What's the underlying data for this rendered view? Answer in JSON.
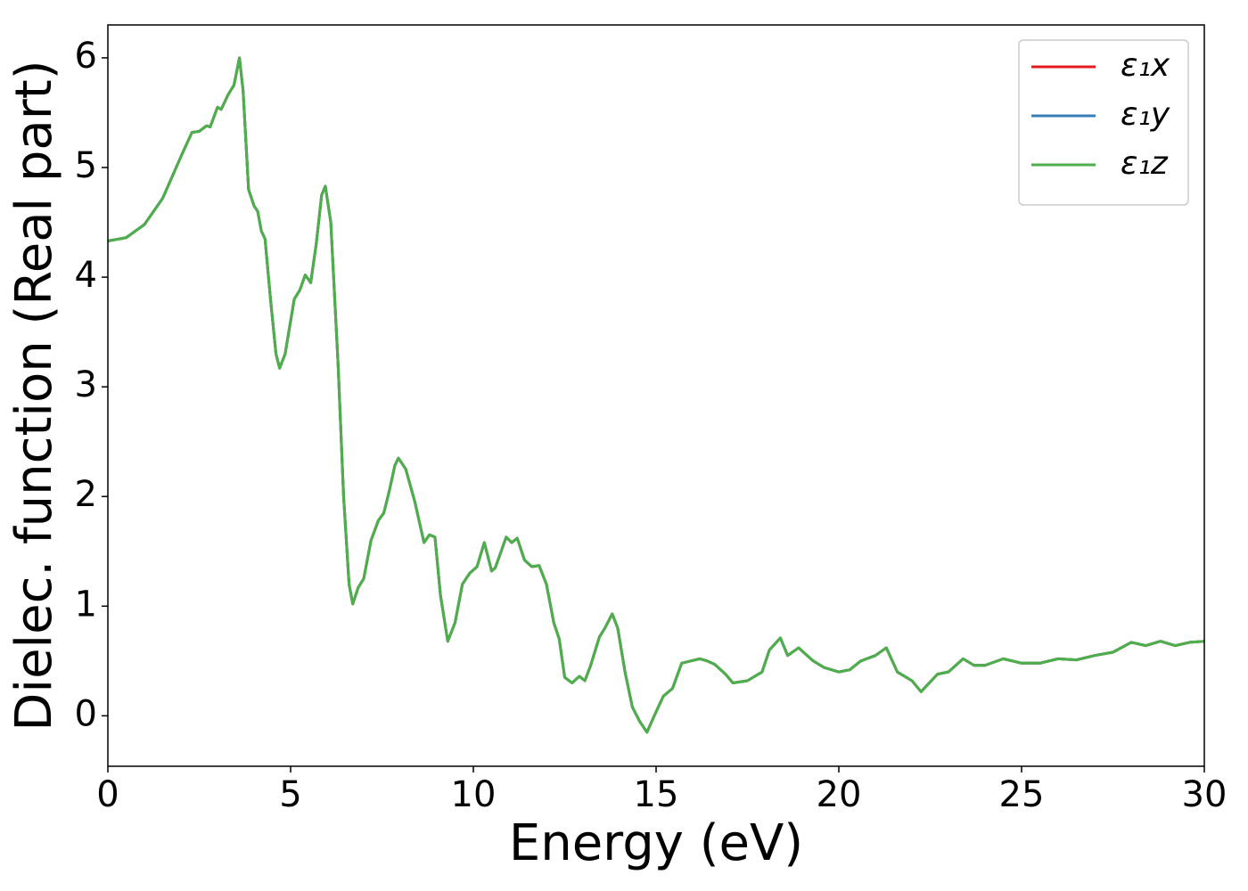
{
  "chart_data": {
    "type": "line",
    "xlabel": "Energy (eV)",
    "ylabel": "Dielec. function (Real part)",
    "x": [
      0,
      0.5,
      1,
      1.5,
      2,
      2.3,
      2.5,
      2.7,
      2.8,
      3.0,
      3.1,
      3.3,
      3.45,
      3.6,
      3.7,
      3.85,
      4.0,
      4.1,
      4.2,
      4.3,
      4.45,
      4.6,
      4.7,
      4.85,
      5.0,
      5.1,
      5.25,
      5.4,
      5.55,
      5.7,
      5.85,
      5.95,
      6.1,
      6.3,
      6.45,
      6.6,
      6.7,
      6.85,
      7.0,
      7.2,
      7.4,
      7.55,
      7.7,
      7.85,
      7.95,
      8.15,
      8.4,
      8.65,
      8.8,
      8.95,
      9.1,
      9.3,
      9.5,
      9.7,
      9.9,
      10.1,
      10.3,
      10.5,
      10.6,
      10.9,
      11.05,
      11.2,
      11.4,
      11.6,
      11.8,
      12.0,
      12.2,
      12.35,
      12.5,
      12.7,
      12.9,
      13.05,
      13.2,
      13.45,
      13.6,
      13.8,
      13.95,
      14.15,
      14.35,
      14.55,
      14.75,
      14.95,
      15.2,
      15.45,
      15.7,
      15.95,
      16.2,
      16.4,
      16.6,
      16.9,
      17.1,
      17.5,
      17.9,
      18.1,
      18.4,
      18.6,
      18.9,
      19.3,
      19.6,
      20.0,
      20.3,
      20.6,
      21.0,
      21.3,
      21.6,
      22.0,
      22.25,
      22.7,
      23.0,
      23.4,
      23.7,
      24.0,
      24.5,
      25.0,
      25.5,
      26.0,
      26.5,
      27.0,
      27.5,
      28.0,
      28.4,
      28.8,
      29.2,
      29.6,
      30.0
    ],
    "series": [
      {
        "name": "ε₁x",
        "color": "#e41a1c",
        "values": [
          4.33,
          4.36,
          4.48,
          4.72,
          5.1,
          5.32,
          5.33,
          5.38,
          5.37,
          5.55,
          5.53,
          5.67,
          5.75,
          6.0,
          5.7,
          4.8,
          4.65,
          4.6,
          4.42,
          4.35,
          3.8,
          3.3,
          3.17,
          3.3,
          3.6,
          3.8,
          3.88,
          4.02,
          3.95,
          4.3,
          4.75,
          4.83,
          4.5,
          3.2,
          2.0,
          1.2,
          1.02,
          1.17,
          1.25,
          1.6,
          1.78,
          1.85,
          2.05,
          2.28,
          2.35,
          2.25,
          1.95,
          1.58,
          1.65,
          1.63,
          1.1,
          0.68,
          0.85,
          1.2,
          1.3,
          1.36,
          1.58,
          1.32,
          1.35,
          1.63,
          1.58,
          1.62,
          1.42,
          1.36,
          1.37,
          1.2,
          0.85,
          0.7,
          0.35,
          0.3,
          0.36,
          0.32,
          0.45,
          0.72,
          0.8,
          0.93,
          0.8,
          0.4,
          0.08,
          -0.05,
          -0.15,
          0.0,
          0.18,
          0.25,
          0.48,
          0.5,
          0.52,
          0.5,
          0.47,
          0.38,
          0.3,
          0.32,
          0.4,
          0.6,
          0.71,
          0.55,
          0.62,
          0.5,
          0.44,
          0.4,
          0.42,
          0.5,
          0.55,
          0.62,
          0.4,
          0.32,
          0.22,
          0.38,
          0.4,
          0.52,
          0.46,
          0.46,
          0.52,
          0.48,
          0.48,
          0.52,
          0.51,
          0.55,
          0.58,
          0.67,
          0.64,
          0.68,
          0.64,
          0.67,
          0.68
        ]
      },
      {
        "name": "ε₁y",
        "color": "#377eb8",
        "values": [
          4.33,
          4.36,
          4.48,
          4.72,
          5.1,
          5.32,
          5.33,
          5.38,
          5.37,
          5.55,
          5.53,
          5.67,
          5.75,
          6.0,
          5.7,
          4.8,
          4.65,
          4.6,
          4.42,
          4.35,
          3.8,
          3.3,
          3.17,
          3.3,
          3.6,
          3.8,
          3.88,
          4.02,
          3.95,
          4.3,
          4.75,
          4.83,
          4.5,
          3.2,
          2.0,
          1.2,
          1.02,
          1.17,
          1.25,
          1.6,
          1.78,
          1.85,
          2.05,
          2.28,
          2.35,
          2.25,
          1.95,
          1.58,
          1.65,
          1.63,
          1.1,
          0.68,
          0.85,
          1.2,
          1.3,
          1.36,
          1.58,
          1.32,
          1.35,
          1.63,
          1.58,
          1.62,
          1.42,
          1.36,
          1.37,
          1.2,
          0.85,
          0.7,
          0.35,
          0.3,
          0.36,
          0.32,
          0.45,
          0.72,
          0.8,
          0.93,
          0.8,
          0.4,
          0.08,
          -0.05,
          -0.15,
          0.0,
          0.18,
          0.25,
          0.48,
          0.5,
          0.52,
          0.5,
          0.47,
          0.38,
          0.3,
          0.32,
          0.4,
          0.6,
          0.71,
          0.55,
          0.62,
          0.5,
          0.44,
          0.4,
          0.42,
          0.5,
          0.55,
          0.62,
          0.4,
          0.32,
          0.22,
          0.38,
          0.4,
          0.52,
          0.46,
          0.46,
          0.52,
          0.48,
          0.48,
          0.52,
          0.51,
          0.55,
          0.58,
          0.67,
          0.64,
          0.68,
          0.64,
          0.67,
          0.68
        ]
      },
      {
        "name": "ε₁z",
        "color": "#4daf4a",
        "values": [
          4.33,
          4.36,
          4.48,
          4.72,
          5.1,
          5.32,
          5.33,
          5.38,
          5.37,
          5.55,
          5.53,
          5.67,
          5.75,
          6.0,
          5.7,
          4.8,
          4.65,
          4.6,
          4.42,
          4.35,
          3.8,
          3.3,
          3.17,
          3.3,
          3.6,
          3.8,
          3.88,
          4.02,
          3.95,
          4.3,
          4.75,
          4.83,
          4.5,
          3.2,
          2.0,
          1.2,
          1.02,
          1.17,
          1.25,
          1.6,
          1.78,
          1.85,
          2.05,
          2.28,
          2.35,
          2.25,
          1.95,
          1.58,
          1.65,
          1.63,
          1.1,
          0.68,
          0.85,
          1.2,
          1.3,
          1.36,
          1.58,
          1.32,
          1.35,
          1.63,
          1.58,
          1.62,
          1.42,
          1.36,
          1.37,
          1.2,
          0.85,
          0.7,
          0.35,
          0.3,
          0.36,
          0.32,
          0.45,
          0.72,
          0.8,
          0.93,
          0.8,
          0.4,
          0.08,
          -0.05,
          -0.15,
          0.0,
          0.18,
          0.25,
          0.48,
          0.5,
          0.52,
          0.5,
          0.47,
          0.38,
          0.3,
          0.32,
          0.4,
          0.6,
          0.71,
          0.55,
          0.62,
          0.5,
          0.44,
          0.4,
          0.42,
          0.5,
          0.55,
          0.62,
          0.4,
          0.32,
          0.22,
          0.38,
          0.4,
          0.52,
          0.46,
          0.46,
          0.52,
          0.48,
          0.48,
          0.52,
          0.51,
          0.55,
          0.58,
          0.67,
          0.64,
          0.68,
          0.64,
          0.67,
          0.68
        ]
      }
    ],
    "xlim": [
      0,
      30
    ],
    "xticks": [
      0,
      5,
      10,
      15,
      20,
      25,
      30
    ],
    "ylim": [
      -0.46,
      6.3
    ],
    "yticks": [
      0,
      1,
      2,
      3,
      4,
      5,
      6
    ],
    "grid": false,
    "legend": "upper right"
  }
}
